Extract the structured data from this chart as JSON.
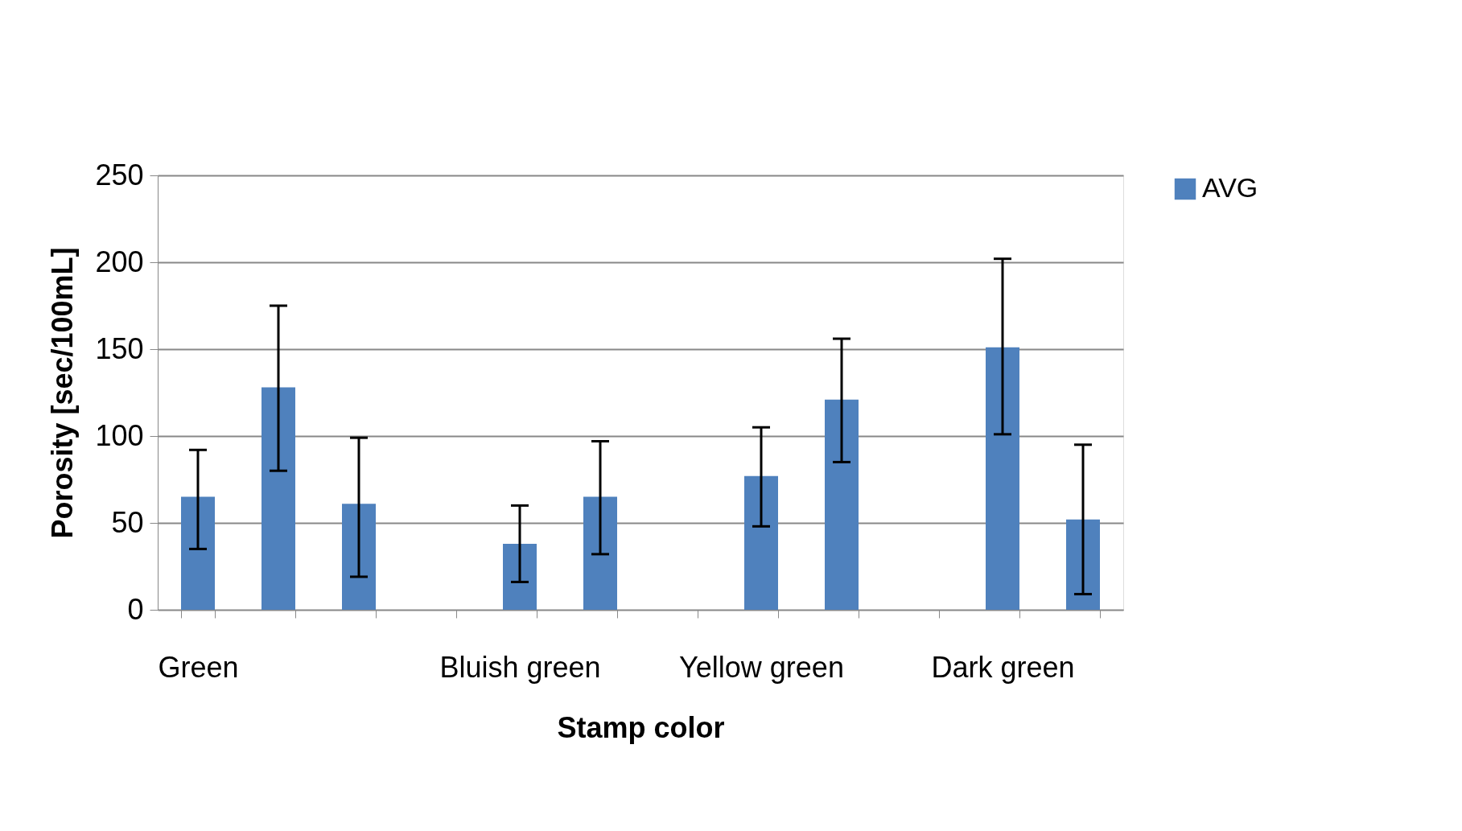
{
  "chart_data": {
    "type": "bar",
    "xlabel": "Stamp color",
    "ylabel": "Porosity [sec/100mL]",
    "categories": [
      "Green",
      null,
      null,
      null,
      "Bluish green",
      null,
      null,
      "Yellow green",
      null,
      null,
      "Dark green",
      null
    ],
    "series": [
      {
        "name": "AVG",
        "color": "#4f81bd",
        "values": [
          65,
          128,
          61,
          null,
          38,
          65,
          null,
          77,
          121,
          null,
          151,
          52
        ],
        "errors": [
          [
            35,
            92
          ],
          [
            80,
            175
          ],
          [
            19,
            99
          ],
          null,
          [
            16,
            60
          ],
          [
            32,
            97
          ],
          null,
          [
            48,
            105
          ],
          [
            85,
            156
          ],
          null,
          [
            101,
            202
          ],
          [
            9,
            95
          ]
        ]
      }
    ],
    "ylim": [
      0,
      250
    ],
    "yticks": [
      0,
      50,
      100,
      150,
      200,
      250
    ],
    "grid": "y",
    "legend": "right"
  }
}
